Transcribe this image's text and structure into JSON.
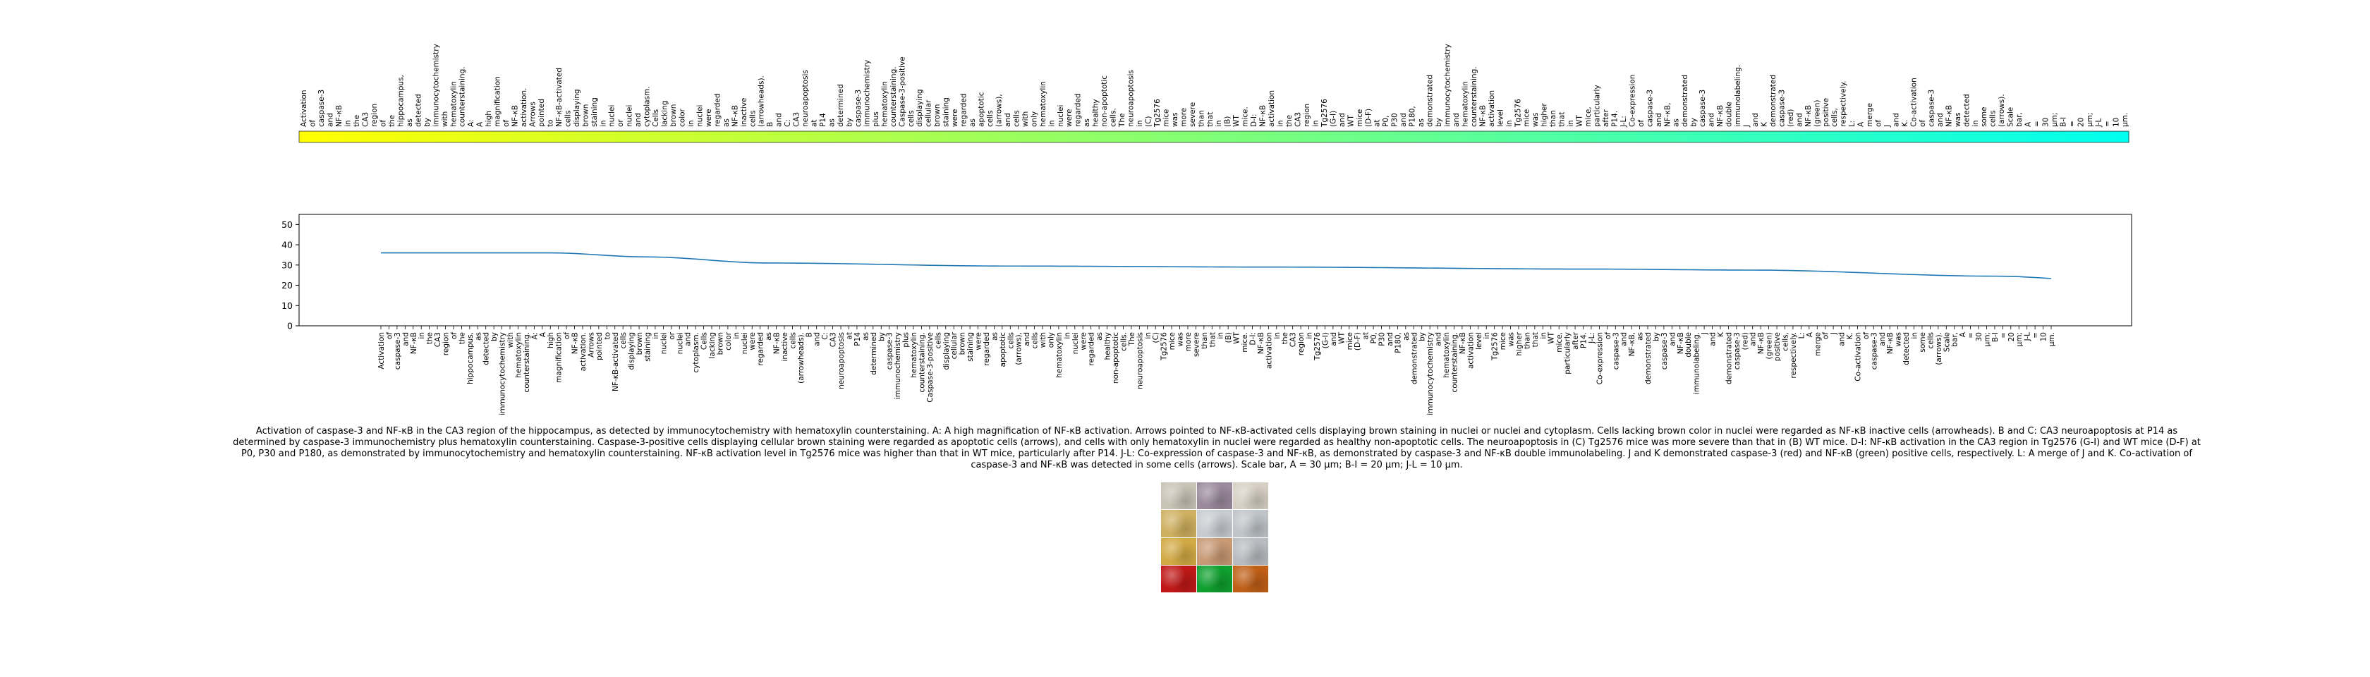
{
  "chart_data": {
    "type": "line",
    "tokens": [
      "Activation",
      "of",
      "caspase-3",
      "and",
      "NF-κB",
      "in",
      "the",
      "CA3",
      "region",
      "of",
      "the",
      "hippocampus,",
      "as",
      "detected",
      "by",
      "immunocytochemistry",
      "with",
      "hematoxylin",
      "counterstaining.",
      "A:",
      "A",
      "high",
      "magnification",
      "of",
      "NF-κB",
      "activation.",
      "Arrows",
      "pointed",
      "to",
      "NF-κB-activated",
      "cells",
      "displaying",
      "brown",
      "staining",
      "in",
      "nuclei",
      "or",
      "nuclei",
      "and",
      "cytoplasm.",
      "Cells",
      "lacking",
      "brown",
      "color",
      "in",
      "nuclei",
      "were",
      "regarded",
      "as",
      "NF-κB",
      "inactive",
      "cells",
      "(arrowheads).",
      "B",
      "and",
      "C:",
      "CA3",
      "neuroapoptosis",
      "at",
      "P14",
      "as",
      "determined",
      "by",
      "caspase-3",
      "immunochemistry",
      "plus",
      "hematoxylin",
      "counterstaining.",
      "Caspase-3-positive",
      "cells",
      "displaying",
      "cellular",
      "brown",
      "staining",
      "were",
      "regarded",
      "as",
      "apoptotic",
      "cells",
      "(arrows),",
      "and",
      "cells",
      "with",
      "only",
      "hematoxylin",
      "in",
      "nuclei",
      "were",
      "regarded",
      "as",
      "healthy",
      "non-apoptotic",
      "cells.",
      "The",
      "neuroapoptosis",
      "in",
      "(C)",
      "Tg2576",
      "mice",
      "was",
      "more",
      "severe",
      "than",
      "that",
      "in",
      "(B)",
      "WT",
      "mice.",
      "D-I:",
      "NF-κB",
      "activation",
      "in",
      "the",
      "CA3",
      "region",
      "in",
      "Tg2576",
      "(G-I)",
      "and",
      "WT",
      "mice",
      "(D-F)",
      "at",
      "P0,",
      "P30",
      "and",
      "P180,",
      "as",
      "demonstrated",
      "by",
      "immunocytochemistry",
      "and",
      "hematoxylin",
      "counterstaining.",
      "NF-κB",
      "activation",
      "level",
      "in",
      "Tg2576",
      "mice",
      "was",
      "higher",
      "than",
      "that",
      "in",
      "WT",
      "mice,",
      "particularly",
      "after",
      "P14.",
      "J-L:",
      "Co-expression",
      "of",
      "caspase-3",
      "and",
      "NF-κB,",
      "as",
      "demonstrated",
      "by",
      "caspase-3",
      "and",
      "NF-κB",
      "double",
      "immunolabeling.",
      "J",
      "and",
      "K",
      "demonstrated",
      "caspase-3",
      "(red)",
      "and",
      "NF-κB",
      "(green)",
      "positive",
      "cells,",
      "respectively.",
      "L:",
      "A",
      "merge",
      "of",
      "J",
      "and",
      "K.",
      "Co-activation",
      "of",
      "caspase-3",
      "and",
      "NF-κB",
      "was",
      "detected",
      "in",
      "some",
      "cells",
      "(arrows).",
      "Scale",
      "bar,",
      "A",
      "=",
      "30",
      "μm;",
      "B-I",
      "=",
      "20",
      "μm;",
      "J-L",
      "=",
      "10",
      "μm."
    ],
    "yticks": [
      0,
      10,
      20,
      30,
      40,
      50
    ],
    "ylim": [
      0,
      55
    ],
    "series_anchors": [
      [
        0,
        36
      ],
      [
        21,
        36
      ],
      [
        33,
        34
      ],
      [
        48,
        31
      ],
      [
        78,
        29.5
      ],
      [
        110,
        29
      ],
      [
        150,
        28
      ],
      [
        170,
        27.5
      ],
      [
        200,
        24.5
      ],
      [
        218,
        21
      ]
    ],
    "line_color": "#1f77b4",
    "colormap": [
      "#ffff00",
      "#00ffee"
    ],
    "caption": "Activation of caspase-3 and NF-κB in the CA3 region of the hippocampus, as detected by immunocytochemistry with hematoxylin counterstaining. A: A high magnification of NF-κB activation. Arrows pointed to NF-κB-activated cells displaying brown staining in nuclei or nuclei and cytoplasm. Cells lacking brown color in nuclei were regarded as NF-κB inactive cells (arrowheads). B and C: CA3 neuroapoptosis at P14 as determined by caspase-3 immunochemistry plus hematoxylin counterstaining. Caspase-3-positive cells displaying cellular brown staining were regarded as apoptotic cells (arrows), and cells with only hematoxylin in nuclei were regarded as healthy non-apoptotic cells. The neuroapoptosis in (C) Tg2576 mice was more severe than that in (B) WT mice. D-I: NF-κB activation in the CA3 region in Tg2576 (G-I) and WT mice (D-F) at P0, P30 and P180, as demonstrated by immunocytochemistry and hematoxylin counterstaining. NF-κB activation level in Tg2576 mice was higher than that in WT mice, particularly after P14. J-L: Co-expression of caspase-3 and NF-κB, as demonstrated by caspase-3 and NF-κB double immunolabeling. J and K demonstrated caspase-3 (red) and NF-κB (green) positive cells, respectively. L: A merge of J and K. Co-activation of caspase-3 and NF-κB was detected in some cells (arrows). Scale bar, A = 30 μm; B-I = 20 μm; J-L = 10 μm.",
    "thumbnail_panel_colors": [
      "#c9c3b6",
      "#9a8a9c",
      "#d6cfc4",
      "#cfb060",
      "#c8cbd0",
      "#bfc4c8",
      "#d2aa45",
      "#c89a75",
      "#b8bcc0",
      "#c01818",
      "#10a030",
      "#c06018"
    ]
  }
}
